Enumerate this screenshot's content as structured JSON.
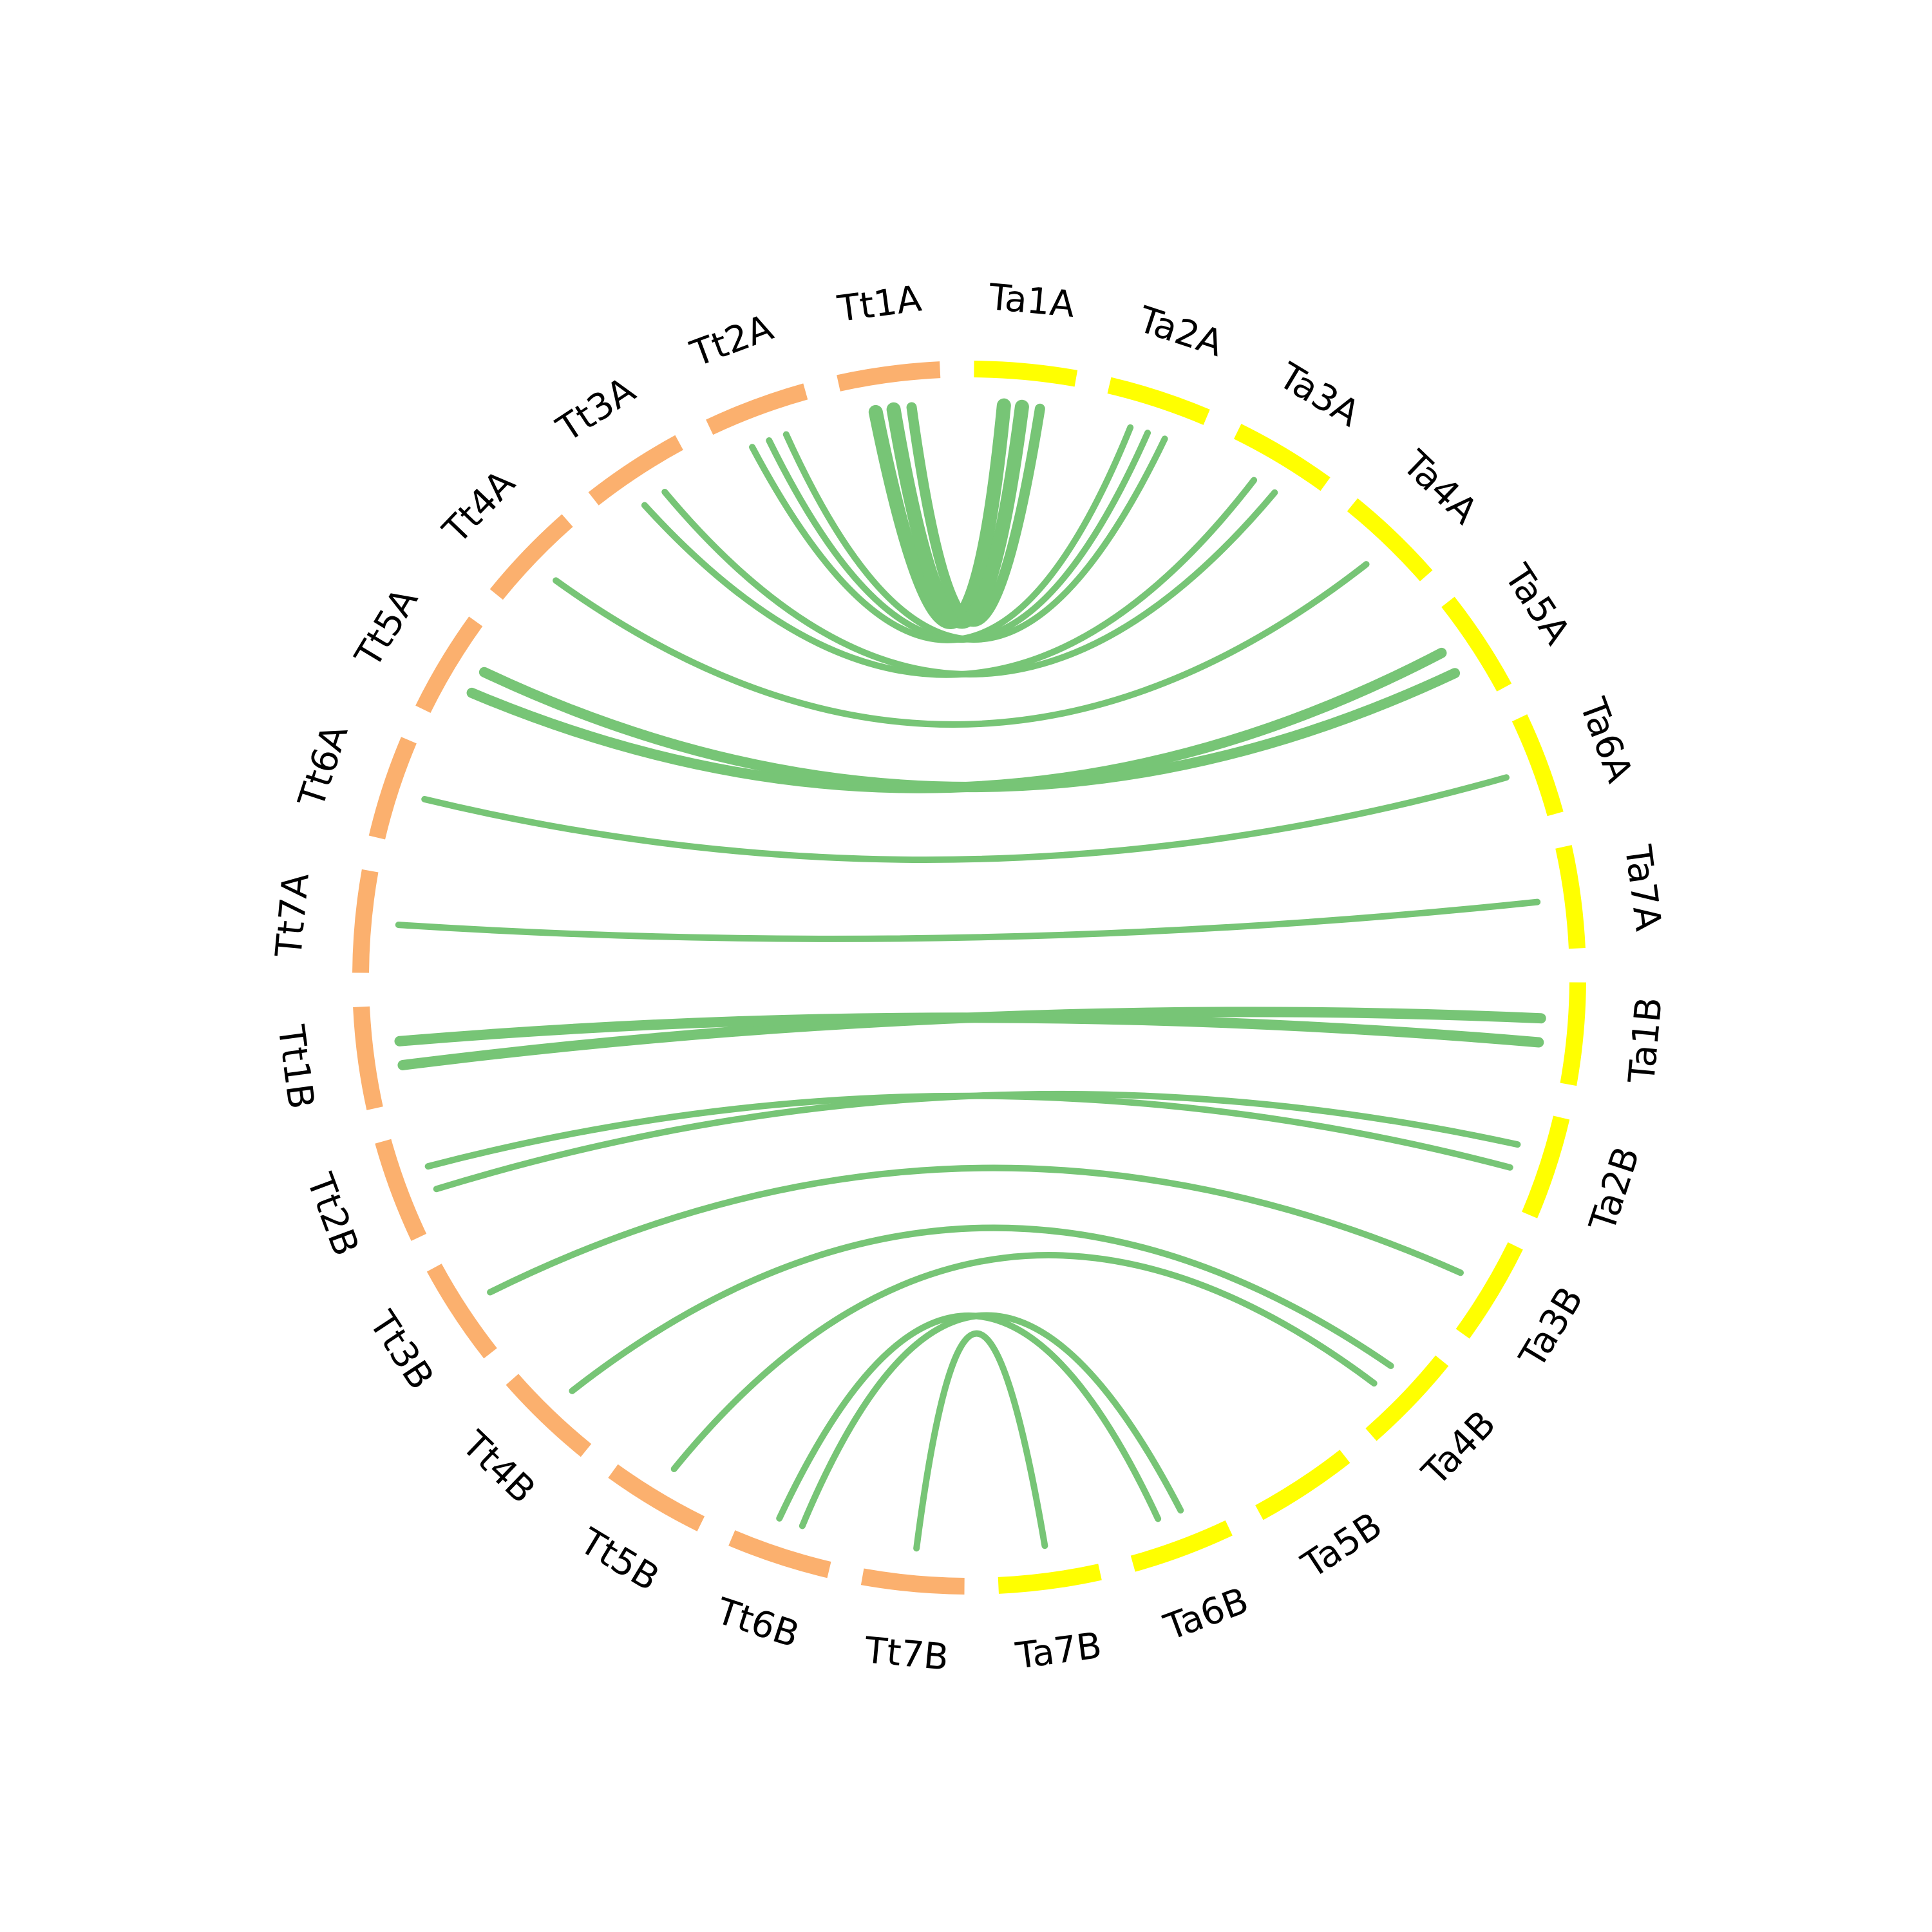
{
  "colors": {
    "tt": "#fbb06e",
    "ta": "#ffff00",
    "link": "#77c576",
    "label": "#000000",
    "background": "#ffffff"
  },
  "chromosomes": [
    "Ta1A",
    "Ta2A",
    "Ta3A",
    "Ta4A",
    "Ta5A",
    "Ta6A",
    "Ta7A",
    "Ta1B",
    "Ta2B",
    "Ta3B",
    "Ta4B",
    "Ta5B",
    "Ta6B",
    "Ta7B",
    "Tt7B",
    "Tt6B",
    "Tt5B",
    "Tt4B",
    "Tt3B",
    "Tt2B",
    "Tt1B",
    "Tt7A",
    "Tt6A",
    "Tt5A",
    "Tt4A",
    "Tt3A",
    "Tt2A",
    "Tt1A"
  ],
  "links": [
    {
      "from": "Tt1A",
      "to": "Ta1A",
      "width": 3
    },
    {
      "from": "Tt1A",
      "to": "Ta1A",
      "width": 3
    },
    {
      "from": "Tt1A",
      "to": "Ta1A",
      "width": 2
    },
    {
      "from": "Tt2A",
      "to": "Ta2A",
      "width": 1
    },
    {
      "from": "Tt2A",
      "to": "Ta2A",
      "width": 1
    },
    {
      "from": "Tt2A",
      "to": "Ta2A",
      "width": 1
    },
    {
      "from": "Tt3A",
      "to": "Ta3A",
      "width": 1
    },
    {
      "from": "Tt3A",
      "to": "Ta3A",
      "width": 1
    },
    {
      "from": "Tt4A",
      "to": "Ta4A",
      "width": 1
    },
    {
      "from": "Tt5A",
      "to": "Ta5A",
      "width": 2
    },
    {
      "from": "Tt5A",
      "to": "Ta5A",
      "width": 2
    },
    {
      "from": "Tt6A",
      "to": "Ta6A",
      "width": 1
    },
    {
      "from": "Tt7A",
      "to": "Ta7A",
      "width": 1
    },
    {
      "from": "Tt1B",
      "to": "Ta1B",
      "width": 2
    },
    {
      "from": "Tt1B",
      "to": "Ta1B",
      "width": 2
    },
    {
      "from": "Tt2B",
      "to": "Ta2B",
      "width": 1
    },
    {
      "from": "Tt2B",
      "to": "Ta2B",
      "width": 1
    },
    {
      "from": "Tt3B",
      "to": "Ta3B",
      "width": 1
    },
    {
      "from": "Tt4B",
      "to": "Ta4B",
      "width": 1
    },
    {
      "from": "Tt5B",
      "to": "Ta4B",
      "width": 1
    },
    {
      "from": "Tt6B",
      "to": "Ta6B",
      "width": 1
    },
    {
      "from": "Tt6B",
      "to": "Ta6B",
      "width": 1
    },
    {
      "from": "Tt7B",
      "to": "Ta7B",
      "width": 1
    }
  ]
}
